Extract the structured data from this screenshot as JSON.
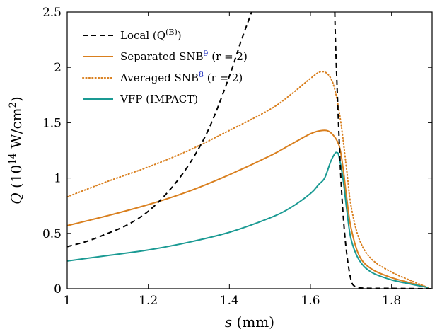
{
  "chart_data": {
    "type": "line",
    "xlabel": {
      "var": "s",
      "unit": " (mm)"
    },
    "ylabel": {
      "var": "Q",
      "unit_pre": " (10",
      "unit_exp": "14",
      "unit_mid": " W/cm",
      "unit_sq": "2",
      "unit_post": ")"
    },
    "xlim": [
      1,
      1.9
    ],
    "ylim": [
      0,
      2.5
    ],
    "xticks": [
      1,
      1.2,
      1.4,
      1.6,
      1.8
    ],
    "yticks": [
      0,
      0.5,
      1,
      1.5,
      2,
      2.5
    ],
    "xtick_labels": [
      "1",
      "1.2",
      "1.4",
      "1.6",
      "1.8"
    ],
    "ytick_labels": [
      "0",
      "0.5",
      "1",
      "1.5",
      "2",
      "2.5"
    ],
    "grid": false,
    "legend_position": "top-left",
    "legend": [
      {
        "text": "Local (Q",
        "sup": "(B)",
        "text_after": ")",
        "ref": "",
        "tail": ""
      },
      {
        "text": "Separated SNB",
        "sup": "",
        "text_after": "",
        "ref": "9",
        "tail": " (r = 2)"
      },
      {
        "text": "Averaged SNB",
        "sup": "",
        "text_after": "",
        "ref": "8",
        "tail": " (r = 2)"
      },
      {
        "text": "VFP (IMPACT)",
        "sup": "",
        "text_after": "",
        "ref": "",
        "tail": ""
      }
    ],
    "series": [
      {
        "name": "Local",
        "color": "#000000",
        "style": "dashed",
        "segments": [
          [
            [
              1.0,
              0.38
            ],
            [
              1.05,
              0.43
            ],
            [
              1.1,
              0.5
            ],
            [
              1.15,
              0.58
            ],
            [
              1.2,
              0.7
            ],
            [
              1.25,
              0.88
            ],
            [
              1.3,
              1.12
            ],
            [
              1.35,
              1.45
            ],
            [
              1.4,
              1.92
            ],
            [
              1.43,
              2.25
            ],
            [
              1.455,
              2.5
            ]
          ],
          [
            [
              1.66,
              2.5
            ],
            [
              1.662,
              2.2
            ],
            [
              1.668,
              1.6
            ],
            [
              1.675,
              1.0
            ],
            [
              1.682,
              0.6
            ],
            [
              1.69,
              0.3
            ],
            [
              1.7,
              0.08
            ],
            [
              1.71,
              0.02
            ],
            [
              1.73,
              0.005
            ],
            [
              1.8,
              0.003
            ],
            [
              1.9,
              0.0
            ]
          ]
        ]
      },
      {
        "name": "Separated SNB",
        "color": "#d97f1e",
        "style": "solid",
        "segments": [
          [
            [
              1.0,
              0.57
            ],
            [
              1.1,
              0.66
            ],
            [
              1.2,
              0.76
            ],
            [
              1.3,
              0.88
            ],
            [
              1.4,
              1.03
            ],
            [
              1.5,
              1.2
            ],
            [
              1.55,
              1.3
            ],
            [
              1.6,
              1.4
            ],
            [
              1.63,
              1.43
            ],
            [
              1.65,
              1.41
            ],
            [
              1.67,
              1.3
            ],
            [
              1.68,
              1.1
            ],
            [
              1.69,
              0.8
            ],
            [
              1.7,
              0.55
            ],
            [
              1.72,
              0.3
            ],
            [
              1.75,
              0.18
            ],
            [
              1.8,
              0.1
            ],
            [
              1.85,
              0.05
            ],
            [
              1.89,
              0.01
            ]
          ]
        ]
      },
      {
        "name": "Averaged SNB",
        "color": "#d97f1e",
        "style": "dotted",
        "segments": [
          [
            [
              1.0,
              0.83
            ],
            [
              1.1,
              0.97
            ],
            [
              1.2,
              1.1
            ],
            [
              1.3,
              1.25
            ],
            [
              1.4,
              1.43
            ],
            [
              1.5,
              1.62
            ],
            [
              1.55,
              1.75
            ],
            [
              1.6,
              1.9
            ],
            [
              1.625,
              1.96
            ],
            [
              1.645,
              1.93
            ],
            [
              1.66,
              1.8
            ],
            [
              1.675,
              1.5
            ],
            [
              1.69,
              1.05
            ],
            [
              1.7,
              0.75
            ],
            [
              1.72,
              0.45
            ],
            [
              1.75,
              0.27
            ],
            [
              1.8,
              0.15
            ],
            [
              1.85,
              0.07
            ],
            [
              1.89,
              0.01
            ]
          ]
        ]
      },
      {
        "name": "VFP (IMPACT)",
        "color": "#1a9a93",
        "style": "solid",
        "segments": [
          [
            [
              1.0,
              0.25
            ],
            [
              1.1,
              0.3
            ],
            [
              1.2,
              0.35
            ],
            [
              1.3,
              0.42
            ],
            [
              1.4,
              0.51
            ],
            [
              1.5,
              0.64
            ],
            [
              1.55,
              0.73
            ],
            [
              1.6,
              0.86
            ],
            [
              1.62,
              0.94
            ],
            [
              1.635,
              1.0
            ],
            [
              1.65,
              1.15
            ],
            [
              1.66,
              1.22
            ],
            [
              1.665,
              1.23
            ],
            [
              1.67,
              1.2
            ],
            [
              1.68,
              1.0
            ],
            [
              1.69,
              0.7
            ],
            [
              1.7,
              0.45
            ],
            [
              1.72,
              0.26
            ],
            [
              1.75,
              0.15
            ],
            [
              1.8,
              0.08
            ],
            [
              1.85,
              0.04
            ],
            [
              1.89,
              0.01
            ]
          ]
        ]
      }
    ]
  }
}
